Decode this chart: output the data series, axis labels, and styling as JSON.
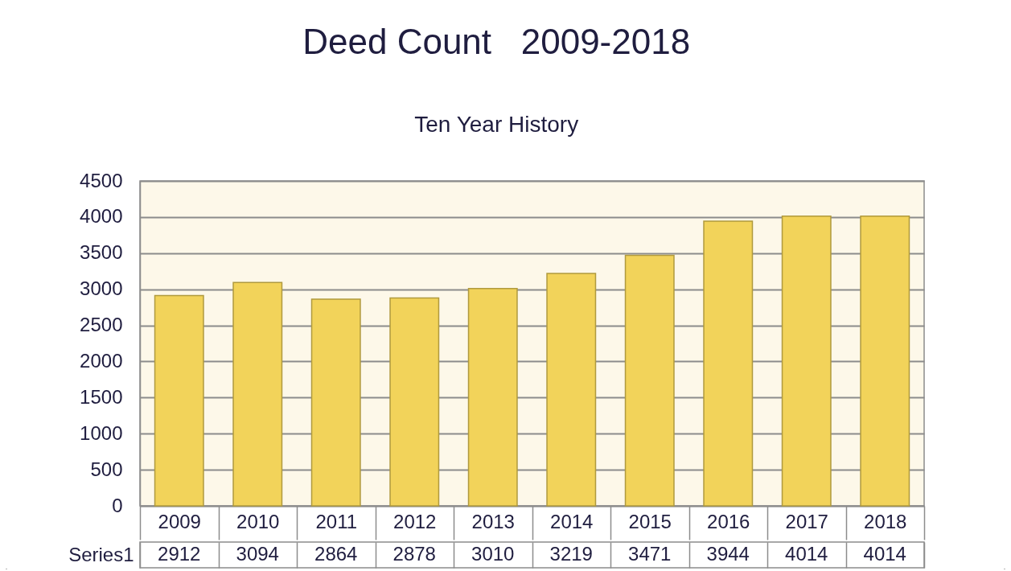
{
  "chart_data": {
    "type": "bar",
    "title": "Deed Count   2009-2018",
    "subtitle": "Ten Year History",
    "categories": [
      "2009",
      "2010",
      "2011",
      "2012",
      "2013",
      "2014",
      "2015",
      "2016",
      "2017",
      "2018"
    ],
    "series": [
      {
        "name": "Series1",
        "color": "#f2d35a",
        "values": [
          2912,
          3094,
          2864,
          2878,
          3010,
          3219,
          3471,
          3944,
          4014,
          4014
        ]
      }
    ],
    "ylim": [
      0,
      4500
    ],
    "yticks": [
      0,
      500,
      1000,
      1500,
      2000,
      2500,
      3000,
      3500,
      4000,
      4500
    ],
    "grid": "y",
    "data_labels": true
  }
}
